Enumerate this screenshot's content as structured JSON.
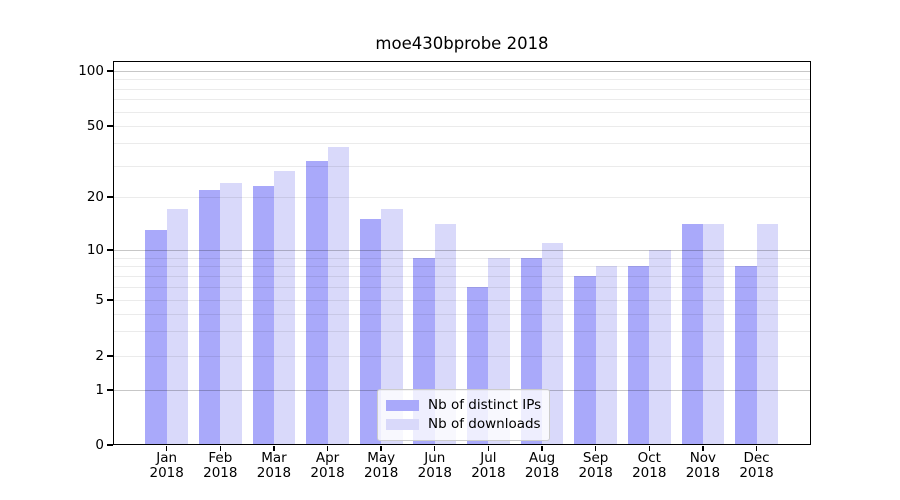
{
  "title": "moe430bprobe 2018",
  "chart_data": {
    "type": "bar",
    "title": "moe430bprobe 2018",
    "categories": [
      "Jan 2018",
      "Feb 2018",
      "Mar 2018",
      "Apr 2018",
      "May 2018",
      "Jun 2018",
      "Jul 2018",
      "Aug 2018",
      "Sep 2018",
      "Oct 2018",
      "Nov 2018",
      "Dec 2018"
    ],
    "series": [
      {
        "name": "Nb of distinct IPs",
        "color": "#a9a9fa",
        "values": [
          13,
          22,
          23,
          32,
          15,
          9,
          6,
          9,
          7,
          8,
          14,
          8
        ]
      },
      {
        "name": "Nb of downloads",
        "color": "#d9d9fa",
        "values": [
          17,
          24,
          28,
          38,
          17,
          14,
          9,
          11,
          8,
          10,
          14,
          14
        ]
      }
    ],
    "xlabel": "",
    "ylabel": "",
    "yscale": "symlog",
    "y_tick_values": [
      0,
      1,
      2,
      5,
      10,
      20,
      50,
      100
    ],
    "y_tick_labels": [
      "0",
      "1",
      "2",
      "5",
      "10",
      "20",
      "50",
      "100"
    ],
    "y_minor_grid_values": [
      2,
      3,
      4,
      5,
      6,
      7,
      8,
      9,
      20,
      30,
      40,
      50,
      60,
      70,
      80,
      90
    ],
    "y_major_grid_values": [
      1,
      10,
      100
    ],
    "ylim": [
      0,
      110
    ],
    "grid": true,
    "legend_position": "lower center"
  },
  "colors": {
    "bar_series1": "#a9a9fa",
    "bar_series2": "#d9d9fa",
    "grid_major": "#c6c6c6",
    "grid_minor": "#ededed",
    "axis": "#000000",
    "text": "#000000",
    "legend_border": "#cccccc",
    "background": "#ffffff"
  }
}
